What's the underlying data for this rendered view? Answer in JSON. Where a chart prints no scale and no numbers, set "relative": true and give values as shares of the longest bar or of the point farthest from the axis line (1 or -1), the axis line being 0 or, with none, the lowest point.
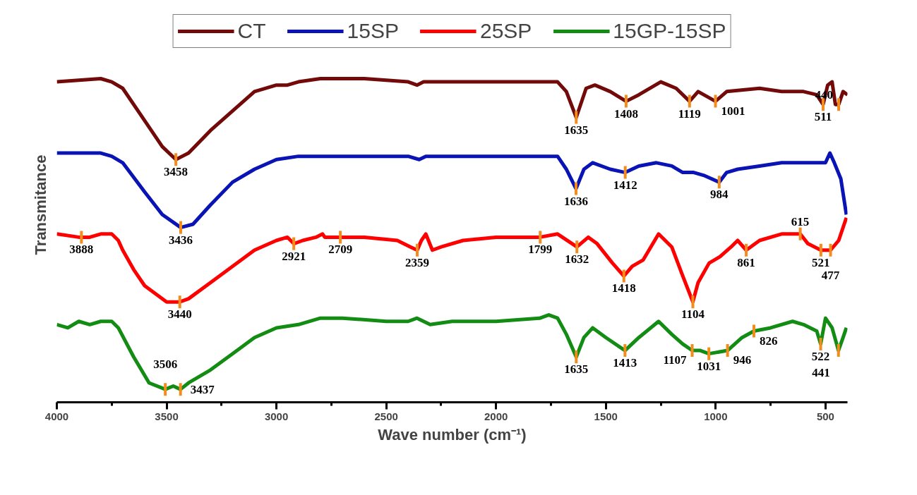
{
  "chart_data": {
    "type": "line",
    "relative": true,
    "xlabel": "Wave number (cm⁻¹)",
    "ylabel": "Transmitance",
    "legend": "top",
    "grid": false,
    "xlim": [
      4000,
      400
    ],
    "xticks": [
      4000,
      {
        "value": 3750,
        "label": null
      },
      3500,
      {
        "value": 3250,
        "label": null
      },
      3000,
      {
        "value": 2750,
        "label": null
      },
      2500,
      {
        "value": 2250,
        "label": null
      },
      2000,
      {
        "value": 1750,
        "label": null
      },
      1500,
      {
        "value": 1250,
        "label": null
      },
      1000,
      {
        "value": 750,
        "label": null
      },
      500
    ],
    "series": [
      {
        "name": "CT",
        "color": "#720a0a",
        "x": [
          4000,
          3800,
          3750,
          3700,
          3600,
          3520,
          3458,
          3400,
          3300,
          3200,
          3100,
          3000,
          2950,
          2900,
          2800,
          2600,
          2400,
          2360,
          2330,
          2200,
          2000,
          1800,
          1720,
          1680,
          1635,
          1590,
          1550,
          1480,
          1408,
          1350,
          1250,
          1180,
          1119,
          1080,
          1001,
          950,
          800,
          700,
          600,
          540,
          511,
          490,
          470,
          455,
          440,
          420,
          400
        ],
        "values": [
          0.99,
          1.0,
          0.99,
          0.97,
          0.87,
          0.79,
          0.75,
          0.77,
          0.84,
          0.9,
          0.96,
          0.98,
          0.98,
          0.99,
          1.0,
          1.0,
          0.99,
          0.98,
          0.99,
          0.99,
          0.99,
          0.99,
          0.99,
          0.96,
          0.88,
          0.97,
          0.98,
          0.96,
          0.93,
          0.95,
          0.99,
          0.97,
          0.93,
          0.96,
          0.93,
          0.96,
          0.97,
          0.96,
          0.96,
          0.95,
          0.92,
          0.98,
          0.99,
          0.92,
          0.92,
          0.96,
          0.95
        ]
      },
      {
        "name": "15SP",
        "color": "#0a14b4",
        "x": [
          4000,
          3800,
          3750,
          3700,
          3600,
          3520,
          3436,
          3380,
          3300,
          3200,
          3100,
          3000,
          2900,
          2700,
          2400,
          2350,
          2320,
          2200,
          1800,
          1720,
          1680,
          1636,
          1600,
          1560,
          1480,
          1412,
          1350,
          1270,
          1200,
          1150,
          1100,
          1050,
          984,
          950,
          900,
          800,
          700,
          600,
          540,
          500,
          480,
          460,
          430,
          405
        ],
        "values": [
          0.77,
          0.77,
          0.76,
          0.74,
          0.65,
          0.58,
          0.54,
          0.55,
          0.61,
          0.68,
          0.72,
          0.75,
          0.76,
          0.76,
          0.76,
          0.75,
          0.76,
          0.76,
          0.76,
          0.76,
          0.72,
          0.66,
          0.72,
          0.74,
          0.72,
          0.71,
          0.73,
          0.74,
          0.73,
          0.71,
          0.71,
          0.7,
          0.68,
          0.71,
          0.72,
          0.73,
          0.74,
          0.74,
          0.74,
          0.74,
          0.77,
          0.74,
          0.69,
          0.58
        ]
      },
      {
        "name": "25SP",
        "color": "#ff0000",
        "x": [
          4000,
          3900,
          3888,
          3850,
          3800,
          3750,
          3720,
          3700,
          3650,
          3600,
          3500,
          3440,
          3400,
          3300,
          3200,
          3100,
          3000,
          2950,
          2921,
          2880,
          2820,
          2790,
          2780,
          2709,
          2600,
          2450,
          2390,
          2359,
          2340,
          2320,
          2290,
          2250,
          2150,
          2000,
          1800,
          1720,
          1632,
          1580,
          1540,
          1470,
          1418,
          1380,
          1330,
          1260,
          1200,
          1150,
          1104,
          1080,
          1030,
          980,
          930,
          900,
          861,
          800,
          700,
          615,
          580,
          521,
          477,
          440,
          405
        ],
        "values": [
          0.52,
          0.51,
          0.51,
          0.51,
          0.52,
          0.52,
          0.5,
          0.47,
          0.41,
          0.36,
          0.31,
          0.31,
          0.32,
          0.37,
          0.42,
          0.47,
          0.5,
          0.51,
          0.49,
          0.5,
          0.51,
          0.52,
          0.51,
          0.51,
          0.51,
          0.5,
          0.48,
          0.47,
          0.5,
          0.52,
          0.47,
          0.48,
          0.5,
          0.51,
          0.51,
          0.52,
          0.48,
          0.51,
          0.49,
          0.43,
          0.39,
          0.42,
          0.44,
          0.52,
          0.48,
          0.39,
          0.31,
          0.37,
          0.43,
          0.45,
          0.48,
          0.5,
          0.47,
          0.5,
          0.52,
          0.52,
          0.49,
          0.47,
          0.47,
          0.5,
          0.57
        ]
      },
      {
        "name": "15GP-15SP",
        "color": "#138c13",
        "x": [
          4000,
          3950,
          3900,
          3850,
          3800,
          3750,
          3720,
          3650,
          3580,
          3506,
          3470,
          3437,
          3400,
          3300,
          3200,
          3100,
          3000,
          2900,
          2800,
          2700,
          2500,
          2400,
          2360,
          2300,
          2200,
          2000,
          1800,
          1760,
          1720,
          1680,
          1635,
          1600,
          1560,
          1500,
          1413,
          1350,
          1260,
          1200,
          1150,
          1107,
          1070,
          1031,
          946,
          880,
          826,
          750,
          650,
          600,
          540,
          522,
          500,
          470,
          441,
          420,
          405
        ],
        "values": [
          0.24,
          0.23,
          0.25,
          0.24,
          0.25,
          0.25,
          0.23,
          0.14,
          0.06,
          0.04,
          0.05,
          0.04,
          0.06,
          0.1,
          0.15,
          0.2,
          0.23,
          0.24,
          0.26,
          0.26,
          0.25,
          0.25,
          0.26,
          0.24,
          0.25,
          0.25,
          0.26,
          0.27,
          0.26,
          0.21,
          0.14,
          0.2,
          0.23,
          0.2,
          0.16,
          0.2,
          0.25,
          0.21,
          0.18,
          0.16,
          0.16,
          0.15,
          0.16,
          0.2,
          0.22,
          0.23,
          0.25,
          0.24,
          0.22,
          0.18,
          0.26,
          0.23,
          0.16,
          0.2,
          0.23
        ]
      }
    ],
    "annotations": [
      {
        "text": "3458",
        "x": 3458,
        "y": 0.75
      },
      {
        "text": "1635",
        "x": 1635,
        "y": 0.88
      },
      {
        "text": "1408",
        "x": 1408,
        "y": 0.93
      },
      {
        "text": "1119",
        "x": 1119,
        "y": 0.93
      },
      {
        "text": "1001",
        "x": 1001,
        "y": 0.93
      },
      {
        "text": "511",
        "x": 511,
        "y": 0.92
      },
      {
        "text": "440",
        "x": 440,
        "y": 0.92
      },
      {
        "text": "3436",
        "x": 3436,
        "y": 0.54
      },
      {
        "text": "1636",
        "x": 1636,
        "y": 0.66
      },
      {
        "text": "1412",
        "x": 1412,
        "y": 0.71
      },
      {
        "text": "984",
        "x": 984,
        "y": 0.68
      },
      {
        "text": "3888",
        "x": 3888,
        "y": 0.51
      },
      {
        "text": "3440",
        "x": 3440,
        "y": 0.31
      },
      {
        "text": "2921",
        "x": 2921,
        "y": 0.49
      },
      {
        "text": "2709",
        "x": 2709,
        "y": 0.51
      },
      {
        "text": "2359",
        "x": 2359,
        "y": 0.47
      },
      {
        "text": "1799",
        "x": 1799,
        "y": 0.51
      },
      {
        "text": "1632",
        "x": 1632,
        "y": 0.48
      },
      {
        "text": "1418",
        "x": 1418,
        "y": 0.39
      },
      {
        "text": "1104",
        "x": 1104,
        "y": 0.31
      },
      {
        "text": "861",
        "x": 861,
        "y": 0.47
      },
      {
        "text": "615",
        "x": 615,
        "y": 0.52
      },
      {
        "text": "521",
        "x": 521,
        "y": 0.47
      },
      {
        "text": "477",
        "x": 477,
        "y": 0.47
      },
      {
        "text": "3506",
        "x": 3506,
        "y": 0.04
      },
      {
        "text": "3437",
        "x": 3437,
        "y": 0.04
      },
      {
        "text": "1635",
        "x": 1635,
        "y": 0.14
      },
      {
        "text": "1413",
        "x": 1413,
        "y": 0.16
      },
      {
        "text": "1107",
        "x": 1107,
        "y": 0.16
      },
      {
        "text": "1031",
        "x": 1031,
        "y": 0.15
      },
      {
        "text": "946",
        "x": 946,
        "y": 0.16
      },
      {
        "text": "826",
        "x": 826,
        "y": 0.22
      },
      {
        "text": "522",
        "x": 522,
        "y": 0.18
      },
      {
        "text": "441",
        "x": 441,
        "y": 0.16
      }
    ]
  }
}
